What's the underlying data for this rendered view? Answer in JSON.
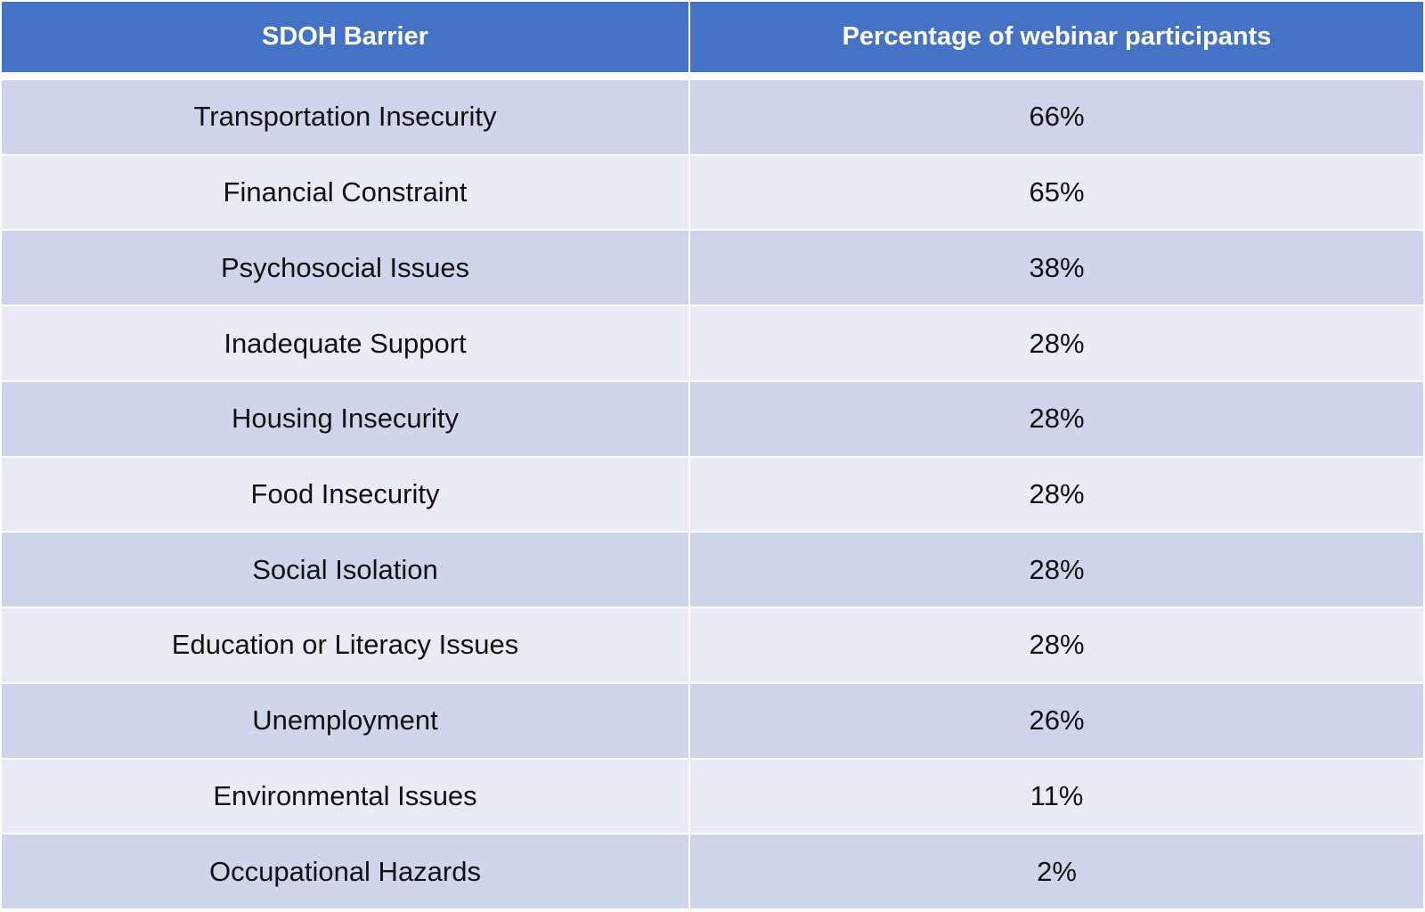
{
  "table": {
    "header": [
      "SDOH Barrier",
      "Percentage of webinar participants"
    ],
    "rows": [
      [
        "Transportation Insecurity",
        "66%"
      ],
      [
        "Financial Constraint",
        "65%"
      ],
      [
        "Psychosocial Issues",
        "38%"
      ],
      [
        "Inadequate Support",
        "28%"
      ],
      [
        "Housing Insecurity",
        "28%"
      ],
      [
        "Food Insecurity",
        "28%"
      ],
      [
        "Social Isolation",
        "28%"
      ],
      [
        "Education or Literacy Issues",
        "28%"
      ],
      [
        "Unemployment",
        "26%"
      ],
      [
        "Environmental Issues",
        "11%"
      ],
      [
        "Occupational Hazards",
        "2%"
      ]
    ]
  }
}
